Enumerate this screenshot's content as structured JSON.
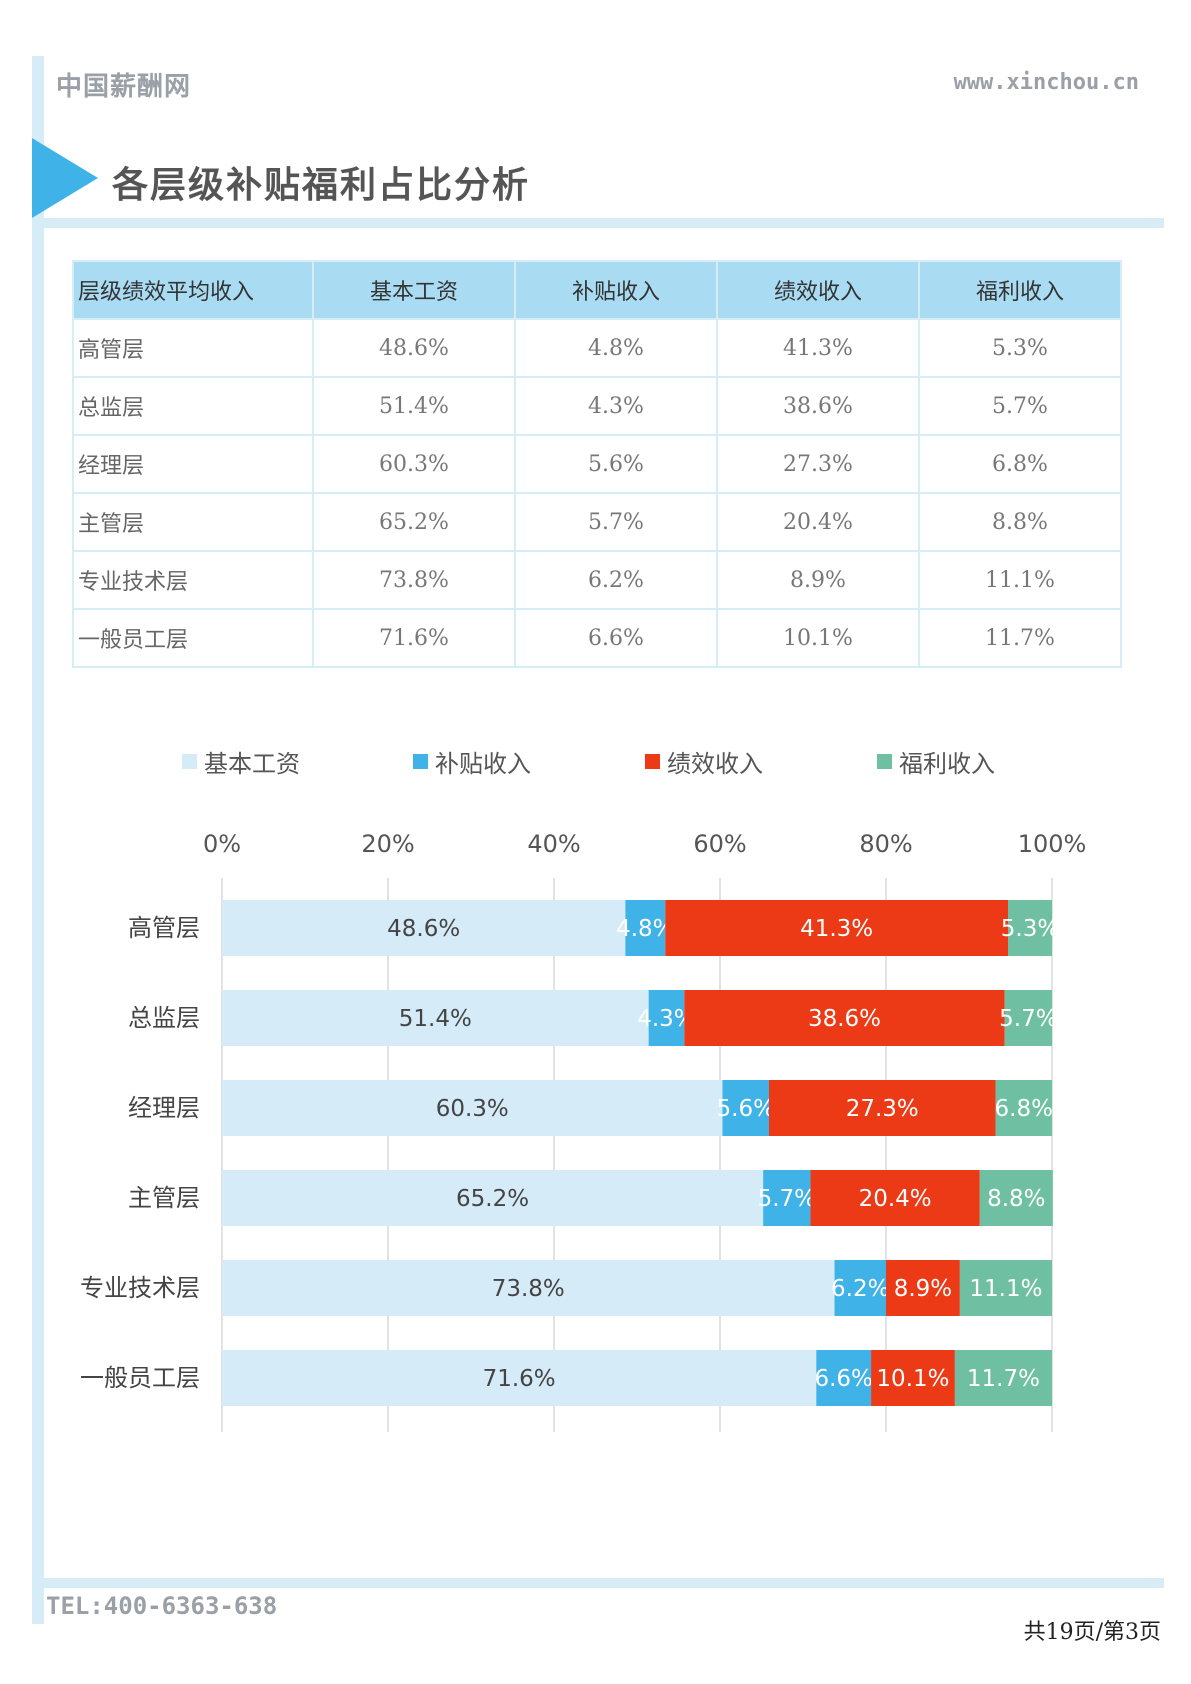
{
  "header": {
    "brand": "中国薪酬网",
    "url": "www.xinchou.cn",
    "title": "各层级补贴福利占比分析"
  },
  "table": {
    "headers": [
      "层级绩效平均收入",
      "基本工资",
      "补贴收入",
      "绩效收入",
      "福利收入"
    ],
    "rows": [
      [
        "高管层",
        "48.6%",
        "4.8%",
        "41.3%",
        "5.3%"
      ],
      [
        "总监层",
        "51.4%",
        "4.3%",
        "38.6%",
        "5.7%"
      ],
      [
        "经理层",
        "60.3%",
        "5.6%",
        "27.3%",
        "6.8%"
      ],
      [
        "主管层",
        "65.2%",
        "5.7%",
        "20.4%",
        "8.8%"
      ],
      [
        "专业技术层",
        "73.8%",
        "6.2%",
        "8.9%",
        "11.1%"
      ],
      [
        "一般员工层",
        "71.6%",
        "6.6%",
        "10.1%",
        "11.7%"
      ]
    ]
  },
  "chart_data": {
    "type": "bar",
    "orientation": "horizontal",
    "stacked": "percent",
    "categories": [
      "高管层",
      "总监层",
      "经理层",
      "主管层",
      "专业技术层",
      "一般员工层"
    ],
    "series": [
      {
        "name": "基本工资",
        "color": "#d5ebf7",
        "label_color": "#444444",
        "values": [
          48.6,
          51.4,
          60.3,
          65.2,
          73.8,
          71.6
        ]
      },
      {
        "name": "补贴收入",
        "color": "#3fb2e8",
        "label_color": "#ffffff",
        "values": [
          4.8,
          4.3,
          5.6,
          5.7,
          6.2,
          6.6
        ]
      },
      {
        "name": "绩效收入",
        "color": "#ec3a17",
        "label_color": "#ffffff",
        "values": [
          41.3,
          38.6,
          27.3,
          20.4,
          8.9,
          10.1
        ]
      },
      {
        "name": "福利收入",
        "color": "#6fc0a3",
        "label_color": "#ffffff",
        "values": [
          5.3,
          5.7,
          6.8,
          8.8,
          11.1,
          11.7
        ]
      }
    ],
    "xlim": [
      0,
      100
    ],
    "xticks": [
      "0%",
      "20%",
      "40%",
      "60%",
      "80%",
      "100%"
    ],
    "data_label_suffix": "%",
    "legend": "top",
    "grid": true
  },
  "footer": {
    "tel": "TEL:400-6363-638",
    "pager": "共19页/第3页"
  }
}
